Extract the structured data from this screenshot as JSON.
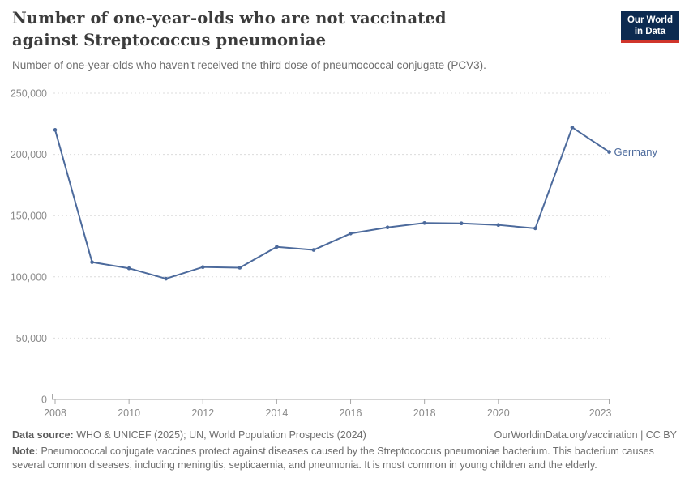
{
  "header": {
    "title": "Number of one-year-olds who are not vaccinated against Streptococcus pneumoniae",
    "subtitle": "Number of one-year-olds who haven't received the third dose of pneumococcal conjugate (PCV3).",
    "logo": {
      "line1": "Our World",
      "line2": "in Data",
      "bg_color": "#0c2a50",
      "accent_color": "#d0352b"
    }
  },
  "chart_data": {
    "type": "line",
    "title": "Number of one-year-olds who are not vaccinated against Streptococcus pneumoniae",
    "x": [
      2008,
      2009,
      2010,
      2011,
      2012,
      2013,
      2014,
      2015,
      2016,
      2017,
      2018,
      2019,
      2020,
      2021,
      2022,
      2023
    ],
    "series": [
      {
        "name": "Germany",
        "color": "#4C6A9C",
        "values": [
          220000,
          112000,
          107000,
          98500,
          108000,
          107500,
          124500,
          122000,
          135400,
          140400,
          144000,
          143700,
          142400,
          139600,
          222000,
          202000
        ]
      }
    ],
    "xlim": [
      2008,
      2023
    ],
    "ylim": [
      0,
      250000
    ],
    "x_ticks": [
      2008,
      2010,
      2012,
      2014,
      2016,
      2018,
      2020,
      2023
    ],
    "y_ticks": [
      0,
      50000,
      100000,
      150000,
      200000,
      250000
    ],
    "grid": "horizontal-dashed",
    "legend": "end-of-line-label",
    "xlabel": "",
    "ylabel": ""
  },
  "footer": {
    "data_source_label": "Data source:",
    "data_source_value": "WHO & UNICEF (2025); UN, World Population Prospects (2024)",
    "link": "OurWorldinData.org/vaccination | CC BY",
    "note_label": "Note:",
    "note_text": "Pneumococcal conjugate vaccines protect against diseases caused by the Streptococcus pneumoniae bacterium. This bacterium causes several common diseases, including meningitis, septicaemia, and pneumonia. It is most common in young children and the elderly."
  },
  "colors": {
    "line": "#4C6A9C",
    "gridline": "#dcdcdc",
    "axis": "#a8a8a8",
    "tick_text": "#8a8a8a",
    "title_text": "#3c3c3c",
    "subtitle_text": "#6e6e6e"
  }
}
